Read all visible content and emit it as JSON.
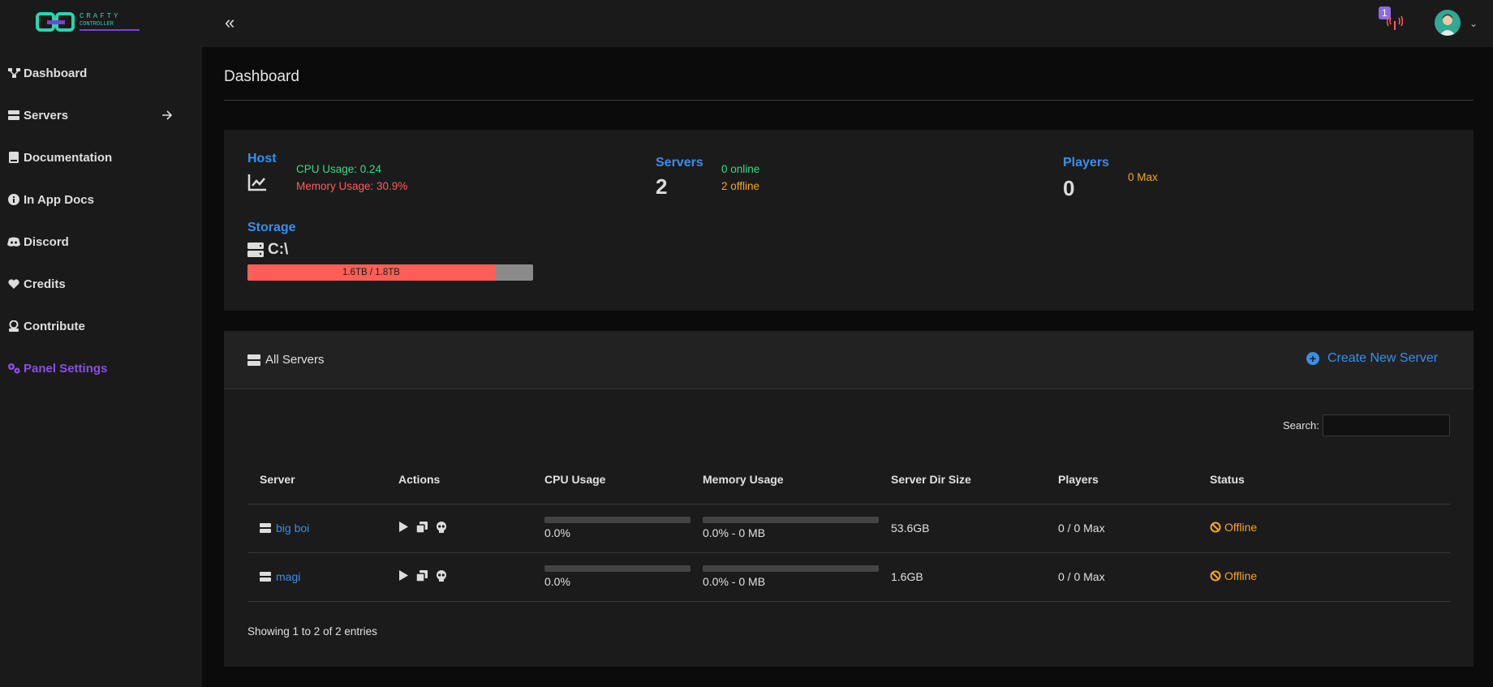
{
  "app": {
    "logo_line1": "CRAFTY",
    "logo_line2": "CONTROLLER"
  },
  "sidebar": {
    "items": [
      {
        "label": "Dashboard",
        "icon": "network-icon"
      },
      {
        "label": "Servers",
        "icon": "server-icon"
      },
      {
        "label": "Documentation",
        "icon": "book-icon"
      },
      {
        "label": "In App Docs",
        "icon": "info-icon"
      },
      {
        "label": "Discord",
        "icon": "discord-icon"
      },
      {
        "label": "Credits",
        "icon": "heart-icon"
      },
      {
        "label": "Contribute",
        "icon": "contribute-icon"
      },
      {
        "label": "Panel Settings",
        "icon": "gears-icon"
      }
    ]
  },
  "topbar": {
    "collapse_glyph": "«",
    "notification_count": "1"
  },
  "page": {
    "title": "Dashboard"
  },
  "host": {
    "title": "Host",
    "cpu": "CPU Usage: 0.24",
    "memory": "Memory Usage: 30.9%"
  },
  "servers_stat": {
    "title": "Servers",
    "count": "2",
    "online": "0 online",
    "offline": "2 offline"
  },
  "players_stat": {
    "title": "Players",
    "count": "0",
    "max": "0 Max"
  },
  "storage": {
    "title": "Storage",
    "drive": "C:\\",
    "usage": "1.6TB / 1.8TB",
    "fill_fraction": 0.868
  },
  "all_servers": {
    "title": "All Servers",
    "create_label": "Create New Server",
    "search_label": "Search:",
    "search_value": "",
    "columns": [
      "Server",
      "Actions",
      "CPU Usage",
      "Memory Usage",
      "Server Dir Size",
      "Players",
      "Status"
    ],
    "rows": [
      {
        "name": "big boi",
        "cpu": "0.0%",
        "memory": "0.0% - 0 MB",
        "size": "53.6GB",
        "players": "0 / 0 Max",
        "status": "Offline"
      },
      {
        "name": "magi",
        "cpu": "0.0%",
        "memory": "0.0% - 0 MB",
        "size": "1.6GB",
        "players": "0 / 0 Max",
        "status": "Offline"
      }
    ],
    "footer": "Showing 1 to 2 of 2 entries"
  },
  "colors": {
    "accent_blue": "#3a8ee8",
    "accent_purple": "#8a4fe0",
    "online_green": "#39d98a",
    "warn_orange": "#f5a623",
    "danger_red": "#ff5c5c"
  }
}
